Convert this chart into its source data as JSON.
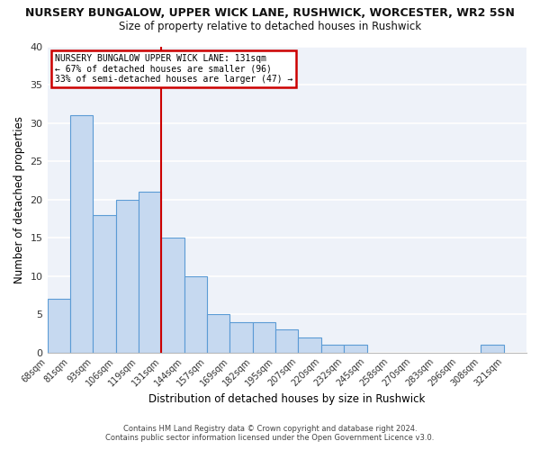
{
  "title": "NURSERY BUNGALOW, UPPER WICK LANE, RUSHWICK, WORCESTER, WR2 5SN",
  "subtitle": "Size of property relative to detached houses in Rushwick",
  "xlabel": "Distribution of detached houses by size in Rushwick",
  "ylabel": "Number of detached properties",
  "categories": [
    "68sqm",
    "81sqm",
    "93sqm",
    "106sqm",
    "119sqm",
    "131sqm",
    "144sqm",
    "157sqm",
    "169sqm",
    "182sqm",
    "195sqm",
    "207sqm",
    "220sqm",
    "232sqm",
    "245sqm",
    "258sqm",
    "270sqm",
    "283sqm",
    "296sqm",
    "308sqm",
    "321sqm"
  ],
  "values": [
    7,
    31,
    18,
    20,
    21,
    15,
    10,
    5,
    4,
    4,
    3,
    2,
    1,
    1,
    0,
    0,
    0,
    0,
    0,
    1,
    0
  ],
  "bar_color": "#c6d9f0",
  "bar_edge_color": "#5b9bd5",
  "vline_x_index": 5,
  "vline_color": "#cc0000",
  "ylim": [
    0,
    40
  ],
  "yticks": [
    0,
    5,
    10,
    15,
    20,
    25,
    30,
    35,
    40
  ],
  "annotation_title": "NURSERY BUNGALOW UPPER WICK LANE: 131sqm",
  "annotation_line1": "← 67% of detached houses are smaller (96)",
  "annotation_line2": "33% of semi-detached houses are larger (47) →",
  "annotation_box_color": "#ffffff",
  "annotation_border_color": "#cc0000",
  "background_color": "#eef2f9",
  "grid_color": "#ffffff",
  "title_fontsize": 9,
  "subtitle_fontsize": 8.5,
  "footnote1": "Contains HM Land Registry data © Crown copyright and database right 2024.",
  "footnote2": "Contains public sector information licensed under the Open Government Licence v3.0."
}
